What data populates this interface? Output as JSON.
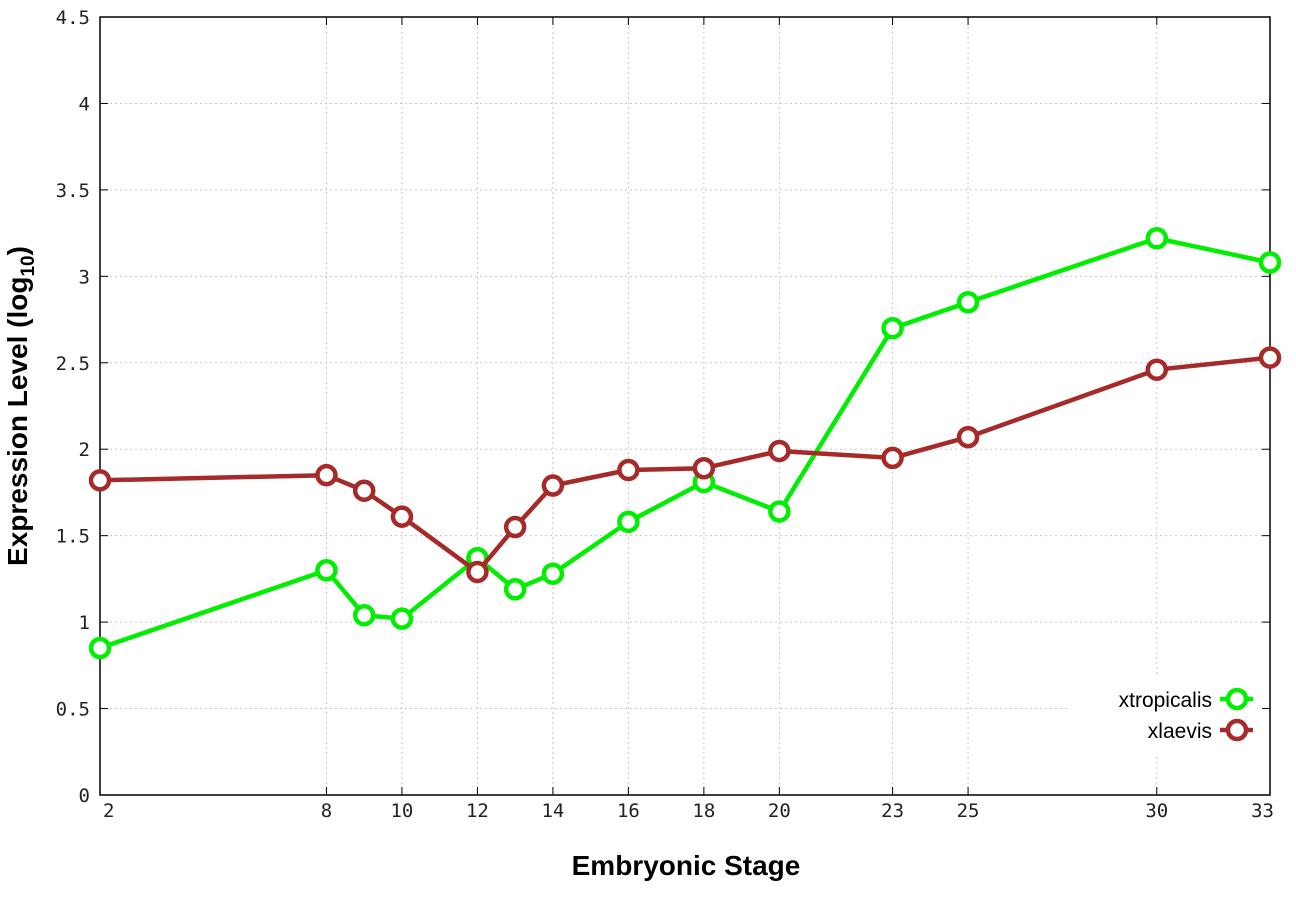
{
  "chart_data": {
    "type": "line",
    "xlabel": "Embryonic Stage",
    "ylabel_main": "Expression Level (log",
    "ylabel_sub": "10",
    "ylabel_close": ")",
    "ylim": [
      0,
      4.5
    ],
    "y_ticks": [
      0,
      0.5,
      1,
      1.5,
      2,
      2.5,
      3,
      3.5,
      4,
      4.5
    ],
    "y_tick_labels": [
      "0",
      "0.5",
      "1",
      "1.5",
      "2",
      "2.5",
      "3",
      "3.5",
      "4",
      "4.5"
    ],
    "categories": [
      "2",
      "8",
      "9",
      "10",
      "12",
      "13",
      "14",
      "16",
      "18",
      "20",
      "23",
      "25",
      "30",
      "33"
    ],
    "x_tick_labels": [
      "2",
      "8",
      "10",
      "12",
      "14",
      "16",
      "18",
      "20",
      "23",
      "25",
      "30",
      "33"
    ],
    "grid": true,
    "legend_position": "bottom-right",
    "series": [
      {
        "name": "xtropicalis",
        "color": "#00ee00",
        "values": [
          0.85,
          1.3,
          1.04,
          1.02,
          1.37,
          1.19,
          1.28,
          1.58,
          1.81,
          1.64,
          2.7,
          2.85,
          3.22,
          3.08
        ]
      },
      {
        "name": "xlaevis",
        "color": "#a52a2a",
        "values": [
          1.82,
          1.85,
          1.76,
          1.61,
          1.29,
          1.55,
          1.79,
          1.88,
          1.89,
          1.99,
          1.95,
          2.07,
          2.46,
          2.53
        ]
      }
    ]
  }
}
